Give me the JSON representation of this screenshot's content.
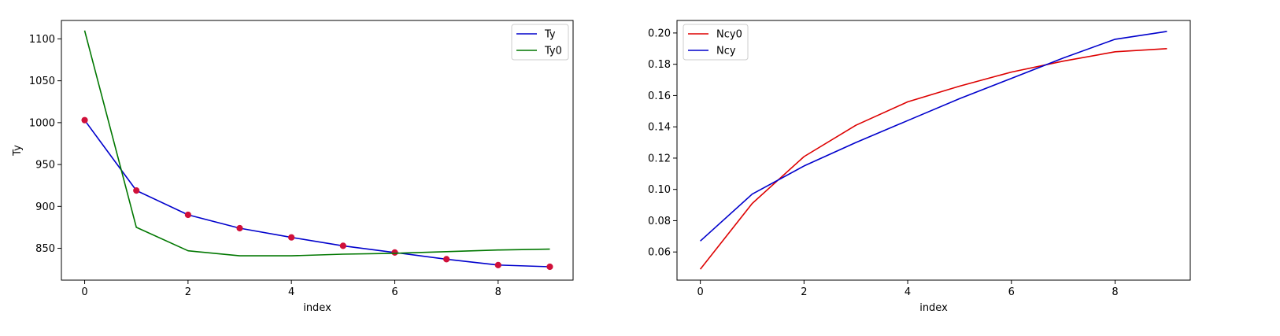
{
  "chart_data": [
    {
      "type": "line",
      "xlabel": "index",
      "ylabel": "Ty",
      "xlim": [
        -0.45,
        9.45
      ],
      "ylim": [
        812,
        1122
      ],
      "xticks": [
        0,
        2,
        4,
        6,
        8
      ],
      "yticks": [
        850,
        900,
        950,
        1000,
        1050,
        1100
      ],
      "x": [
        0,
        1,
        2,
        3,
        4,
        5,
        6,
        7,
        8,
        9
      ],
      "legend_position": "top-right",
      "series": [
        {
          "name": "Ty",
          "color": "#0000cc",
          "markers": true,
          "marker_color": "#d0103a",
          "values": [
            1003,
            919,
            890,
            874,
            863,
            853,
            845,
            837,
            830,
            828
          ]
        },
        {
          "name": "Ty0",
          "color": "#007700",
          "markers": false,
          "values": [
            1110,
            875,
            847,
            841,
            841,
            843,
            844,
            846,
            848,
            849
          ]
        }
      ]
    },
    {
      "type": "line",
      "xlabel": "index",
      "ylabel": "",
      "xlim": [
        -0.45,
        9.45
      ],
      "ylim": [
        0.042,
        0.208
      ],
      "xticks": [
        0,
        2,
        4,
        6,
        8
      ],
      "yticks": [
        0.06,
        0.08,
        0.1,
        0.12,
        0.14,
        0.16,
        0.18,
        0.2
      ],
      "ytick_labels": [
        "0.06",
        "0.08",
        "0.10",
        "0.12",
        "0.14",
        "0.16",
        "0.18",
        "0.20"
      ],
      "x": [
        0,
        1,
        2,
        3,
        4,
        5,
        6,
        7,
        8,
        9
      ],
      "legend_position": "top-left",
      "series": [
        {
          "name": "Ncy0",
          "color": "#dd0000",
          "markers": false,
          "values": [
            0.049,
            0.091,
            0.121,
            0.141,
            0.156,
            0.166,
            0.175,
            0.182,
            0.188,
            0.19
          ]
        },
        {
          "name": "Ncy",
          "color": "#0000cc",
          "markers": false,
          "values": [
            0.067,
            0.097,
            0.115,
            0.13,
            0.144,
            0.158,
            0.171,
            0.184,
            0.196,
            0.201
          ]
        }
      ]
    }
  ]
}
